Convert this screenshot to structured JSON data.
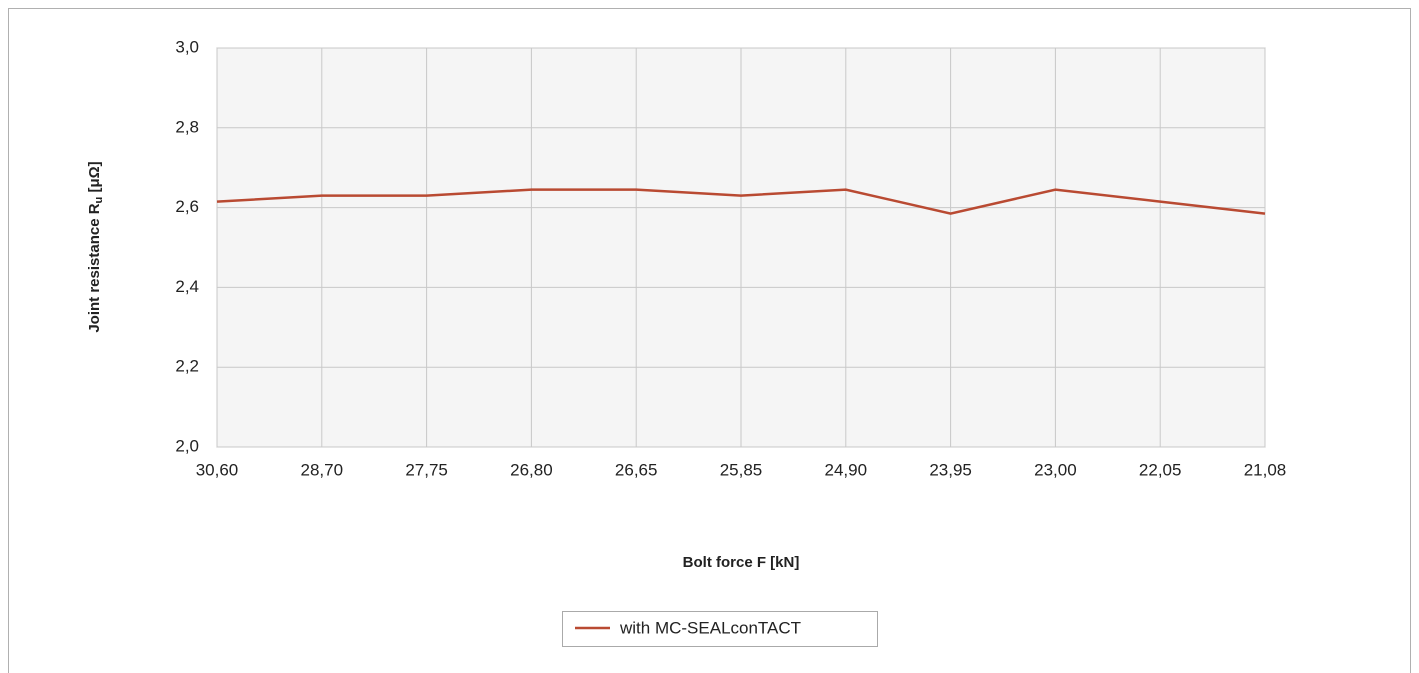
{
  "chart_data": {
    "type": "line",
    "x_label": "Bolt force F [kN]",
    "y_label": "Joint resistance R",
    "y_label_sub": "u",
    "y_label_unit": " [μΩ]",
    "categories": [
      "30,60",
      "28,70",
      "27,75",
      "26,80",
      "26,65",
      "25,85",
      "24,90",
      "23,95",
      "23,00",
      "22,05",
      "21,08"
    ],
    "series": [
      {
        "name": "with MC-SEALconTACT",
        "color": "#b94a32",
        "values": [
          2.615,
          2.63,
          2.63,
          2.645,
          2.645,
          2.63,
          2.645,
          2.585,
          2.645,
          2.615,
          2.585
        ]
      }
    ],
    "ylim": [
      2.0,
      3.0
    ],
    "yticks": [
      {
        "value": 2.0,
        "label": "2,0"
      },
      {
        "value": 2.2,
        "label": "2,2"
      },
      {
        "value": 2.4,
        "label": "2,4"
      },
      {
        "value": 2.6,
        "label": "2,6"
      },
      {
        "value": 2.8,
        "label": "2,8"
      },
      {
        "value": 3.0,
        "label": "3,0"
      }
    ],
    "grid": true,
    "legend": "bottom"
  }
}
